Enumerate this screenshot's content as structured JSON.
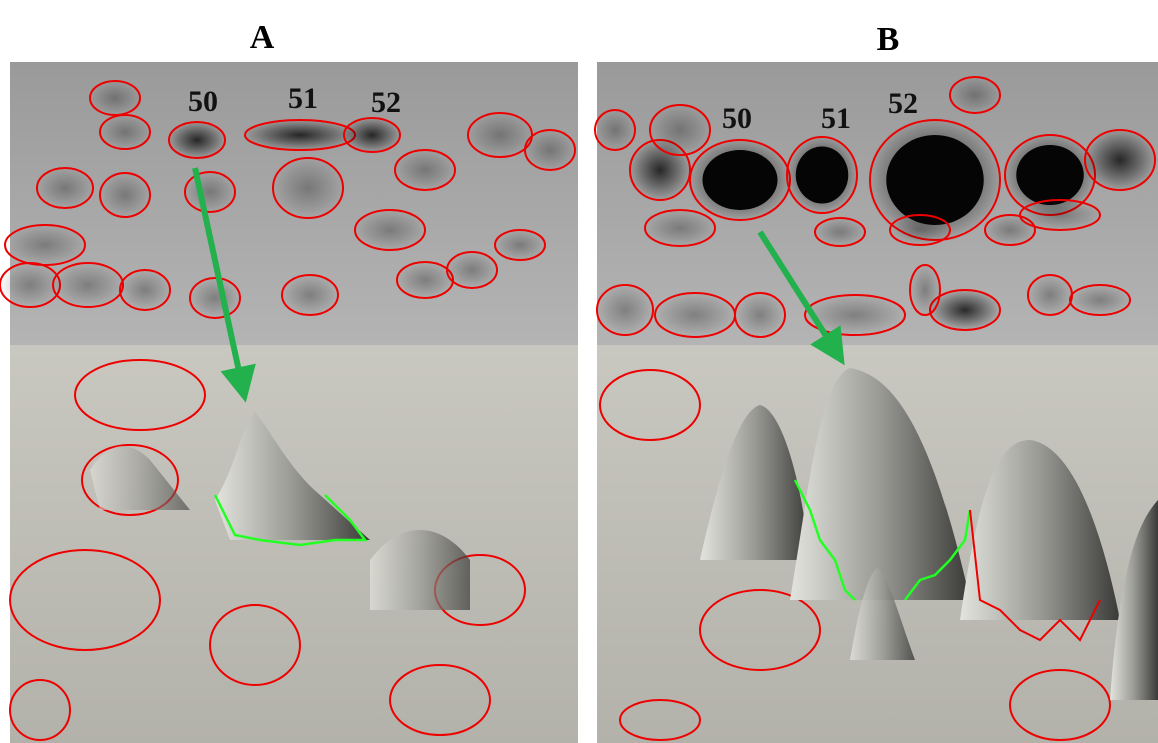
{
  "panels": [
    {
      "label": "A",
      "spots": [
        "50",
        "51",
        "52"
      ]
    },
    {
      "label": "B",
      "spots": [
        "50",
        "51",
        "52"
      ]
    }
  ]
}
